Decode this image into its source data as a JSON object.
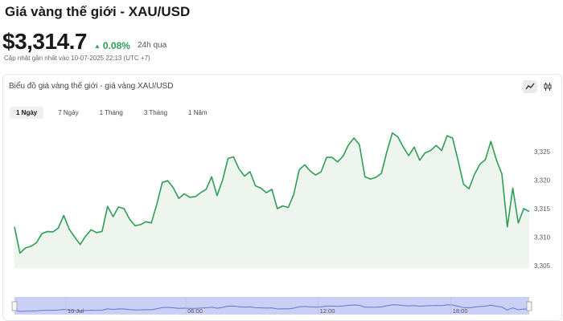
{
  "header": {
    "title": "Giá vàng thế giới - XAU/USD",
    "price": "$3,314.7",
    "change": "0.08%",
    "change_period": "24h qua",
    "updated": "Cập nhật gần nhất vào 10-07-2025 22:13 (UTC +7)"
  },
  "card": {
    "title": "Biểu đồ giá vàng thế giới - giá vàng XAU/USD",
    "tabs": [
      {
        "label": "1 Ngày",
        "active": true
      },
      {
        "label": "7 Ngày",
        "active": false
      },
      {
        "label": "1 Tháng",
        "active": false
      },
      {
        "label": "3 Tháng",
        "active": false
      },
      {
        "label": "1 Năm",
        "active": false
      }
    ],
    "chart_type_buttons": [
      {
        "name": "line-chart-icon",
        "active": true
      },
      {
        "name": "candlestick-chart-icon",
        "active": false
      }
    ]
  },
  "colors": {
    "line": "#2e9e55",
    "area": "#eef5ee",
    "up": "#2e9e55",
    "navigator_fill": "#c9cff5",
    "navigator_line": "#6a74c9"
  },
  "chart_data": {
    "type": "area",
    "title": "",
    "xlabel": "",
    "ylabel": "",
    "y_ticks": [
      "3,305",
      "3,310",
      "3,315",
      "3,320",
      "3,325"
    ],
    "ylim": [
      3304.5,
      3330
    ],
    "navigator_ticks": [
      "10 Jul",
      "06:00",
      "12:00",
      "18:00"
    ],
    "series": [
      {
        "values": [
          3311.8,
          3307.2,
          3308.1,
          3308.4,
          3309.0,
          3310.6,
          3311.0,
          3310.9,
          3311.6,
          3313.8,
          3311.4,
          3310.0,
          3308.7,
          3310.2,
          3311.3,
          3310.8,
          3311.0,
          3315.4,
          3313.6,
          3315.3,
          3315.0,
          3313.2,
          3312.0,
          3312.2,
          3312.7,
          3312.5,
          3315.8,
          3319.6,
          3319.9,
          3318.7,
          3316.8,
          3317.6,
          3317.0,
          3317.1,
          3317.8,
          3318.4,
          3320.6,
          3317.3,
          3320.0,
          3323.8,
          3324.1,
          3322.0,
          3320.7,
          3321.5,
          3319.0,
          3318.6,
          3317.8,
          3318.4,
          3315.0,
          3315.5,
          3315.2,
          3317.5,
          3321.8,
          3322.7,
          3321.6,
          3320.9,
          3321.5,
          3324.0,
          3324.0,
          3323.2,
          3324.2,
          3326.2,
          3327.4,
          3326.2,
          3320.6,
          3320.2,
          3320.5,
          3321.2,
          3325.0,
          3328.3,
          3327.6,
          3325.8,
          3324.3,
          3325.8,
          3323.5,
          3324.8,
          3325.2,
          3326.1,
          3325.2,
          3327.8,
          3327.4,
          3323.5,
          3319.3,
          3318.5,
          3321.0,
          3322.8,
          3323.6,
          3326.8,
          3323.6,
          3321.1,
          3311.8,
          3318.6,
          3312.5,
          3315.0,
          3314.5
        ]
      }
    ]
  }
}
